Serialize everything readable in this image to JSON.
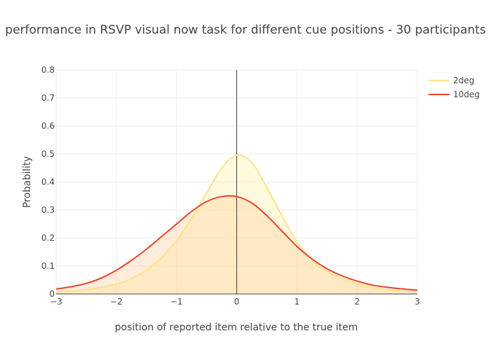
{
  "chart_data": {
    "type": "area",
    "title": "performance in RSVP visual now task for different cue positions - 30 participants",
    "xlabel": "position of reported item relative to the true item",
    "ylabel": "Probability",
    "xlim": [
      -3,
      3
    ],
    "ylim": [
      0,
      0.8
    ],
    "x_ticks": [
      "−3",
      "−2",
      "−1",
      "0",
      "1",
      "2",
      "3"
    ],
    "y_ticks": [
      "0",
      "0.1",
      "0.2",
      "0.3",
      "0.4",
      "0.5",
      "0.6",
      "0.7",
      "0.8"
    ],
    "grid": true,
    "vertical_line_x": 0,
    "legend_position": "top-right",
    "series": [
      {
        "name": "2deg",
        "color": "#ffe38a",
        "fill": "rgba(255,240,160,0.35)",
        "x": [
          -3,
          -2.5,
          -2,
          -1.75,
          -1.5,
          -1.25,
          -1,
          -0.75,
          -0.5,
          -0.25,
          0,
          0.25,
          0.5,
          0.75,
          1,
          1.25,
          1.5,
          2,
          2.5,
          3
        ],
        "y": [
          0.005,
          0.015,
          0.035,
          0.055,
          0.085,
          0.13,
          0.19,
          0.27,
          0.36,
          0.45,
          0.495,
          0.47,
          0.38,
          0.28,
          0.185,
          0.12,
          0.08,
          0.035,
          0.015,
          0.008
        ]
      },
      {
        "name": "10deg",
        "color": "#e8442c",
        "fill": "rgba(255,200,150,0.35)",
        "x": [
          -3,
          -2.75,
          -2.5,
          -2.25,
          -2,
          -1.75,
          -1.5,
          -1.25,
          -1,
          -0.75,
          -0.5,
          -0.25,
          0,
          0.25,
          0.5,
          0.75,
          1,
          1.25,
          1.5,
          1.75,
          2,
          2.25,
          2.5,
          2.75,
          3
        ],
        "y": [
          0.018,
          0.026,
          0.038,
          0.057,
          0.085,
          0.12,
          0.16,
          0.205,
          0.25,
          0.295,
          0.33,
          0.348,
          0.348,
          0.325,
          0.28,
          0.225,
          0.17,
          0.125,
          0.09,
          0.065,
          0.046,
          0.032,
          0.024,
          0.018,
          0.014
        ]
      }
    ]
  }
}
